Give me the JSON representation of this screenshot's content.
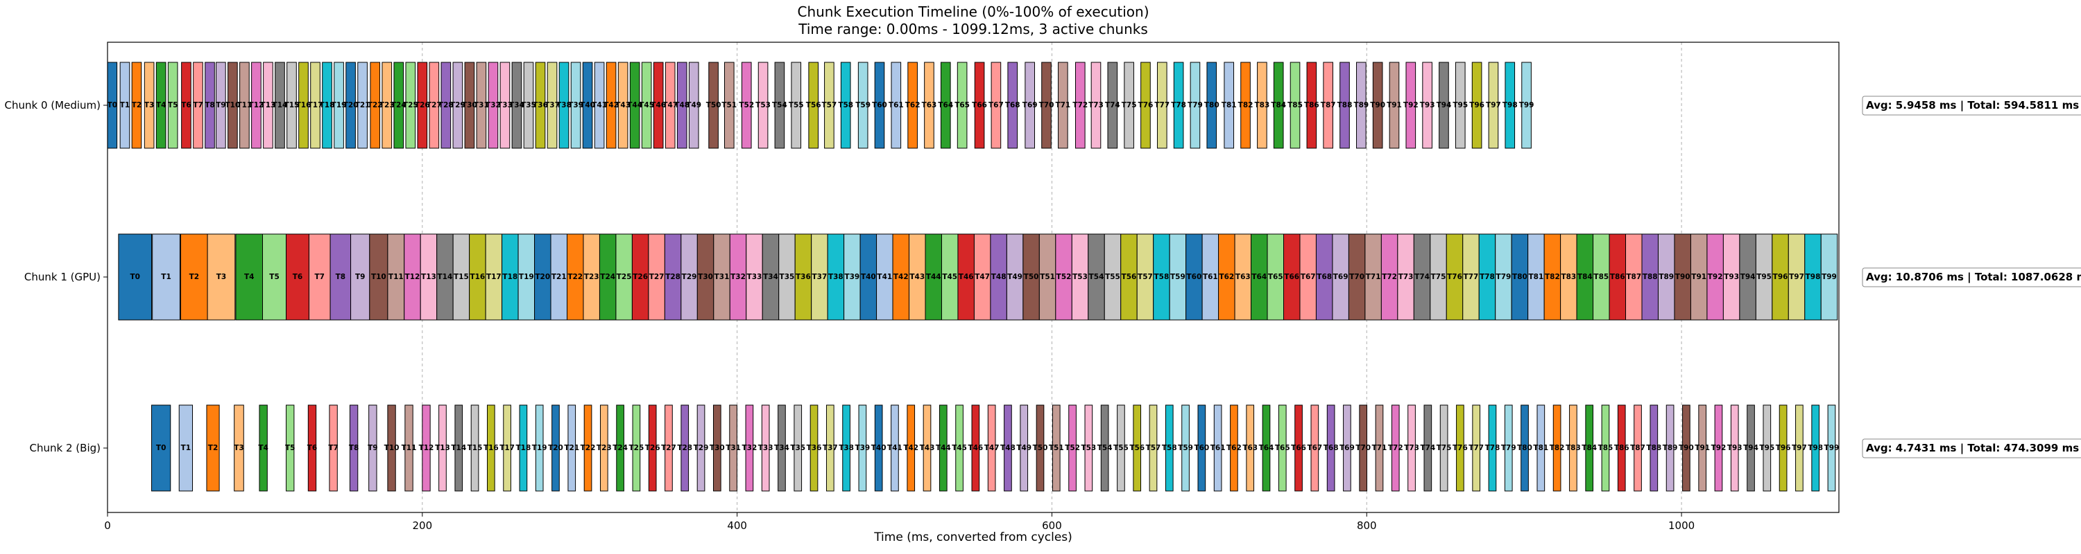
{
  "chart_data": {
    "type": "gantt",
    "title_lines": [
      "Chunk Execution Timeline (0%-100% of execution)",
      "Time range: 0.00ms - 1099.12ms, 3 active chunks"
    ],
    "xlabel": "Time (ms, converted from cycles)",
    "xlim": [
      0,
      1100
    ],
    "xticks": [
      0,
      200,
      400,
      600,
      800,
      1000
    ],
    "grid_x": true,
    "palette": [
      "#1f77b4",
      "#aec7e8",
      "#ff7f0e",
      "#ffbb78",
      "#2ca02c",
      "#98df8a",
      "#d62728",
      "#ff9896",
      "#9467bd",
      "#c5b0d5",
      "#8c564b",
      "#c49c94",
      "#e377c2",
      "#f7b6d2",
      "#7f7f7f",
      "#c7c7c7",
      "#bcbd22",
      "#dbdb8d",
      "#17becf",
      "#9edae5"
    ],
    "task_count": 100,
    "task_prefix": "T",
    "chunks": [
      {
        "name": "Chunk 0 (Medium)",
        "summary": "Avg: 5.9458 ms | Total: 594.5811 ms",
        "starts_ms": [
          0.0,
          8.0,
          15.5,
          23.5,
          31.0,
          38.5,
          47.0,
          54.5,
          62.0,
          69.0,
          76.5,
          84.0,
          91.5,
          99.0,
          106.5,
          114.0,
          121.5,
          129.0,
          136.5,
          144.0,
          151.5,
          159.0,
          167.0,
          174.5,
          182.0,
          189.5,
          197.0,
          204.5,
          212.0,
          219.5,
          227.0,
          234.5,
          242.0,
          249.5,
          257.0,
          264.5,
          272.0,
          279.5,
          287.0,
          294.5,
          302.0,
          309.5,
          317.0,
          324.5,
          332.0,
          339.5,
          347.0,
          354.5,
          362.0,
          369.5,
          382.0,
          392.0,
          403.0,
          413.5,
          424.0,
          434.5,
          445.5,
          455.5,
          466.0,
          477.0,
          487.5,
          498.0,
          508.5,
          519.0,
          529.5,
          540.0,
          551.0,
          561.5,
          572.0,
          583.0,
          593.5,
          604.0,
          615.0,
          625.0,
          635.5,
          646.0,
          656.5,
          667.0,
          677.5,
          688.0,
          698.5,
          709.5,
          720.0,
          730.5,
          741.0,
          751.5,
          762.0,
          772.5,
          783.0,
          793.5
        ],
        "durations_ms": [
          6,
          6,
          6,
          6,
          6,
          6,
          6,
          6,
          6,
          6,
          6,
          6,
          6,
          6,
          6,
          6,
          6,
          6,
          6,
          6,
          6,
          6,
          6,
          6,
          6,
          6,
          6,
          6,
          6,
          6,
          6,
          6,
          6,
          6,
          6,
          6,
          6,
          6,
          6,
          6,
          6,
          6,
          6,
          6,
          6,
          6,
          6,
          6,
          6,
          6,
          6,
          6,
          6,
          6,
          6,
          6,
          6,
          6,
          6,
          6,
          6,
          6,
          6,
          6,
          6,
          6,
          6,
          6,
          6,
          6,
          6,
          6,
          6,
          6,
          6,
          6,
          6,
          6,
          6,
          6,
          6,
          6,
          6,
          6,
          6,
          6,
          6,
          6,
          6,
          6
        ],
        "extra_tasks": {
          "starts_ms": [
            804.0,
            814.5,
            825.0,
            835.5,
            846.0,
            856.5,
            867.0,
            877.5,
            888.0,
            898.5
          ],
          "durations_ms": [
            6,
            6,
            6,
            6,
            6,
            6,
            6,
            6,
            6,
            6
          ]
        },
        "big_gaps_note": ""
      }
    ]
  }
}
